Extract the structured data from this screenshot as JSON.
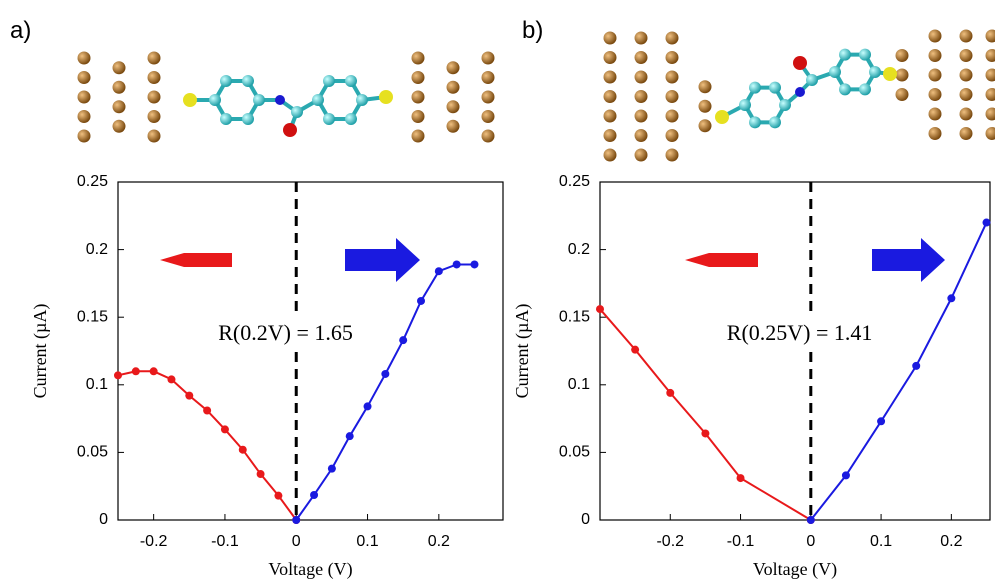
{
  "chart_data": [
    {
      "type": "line",
      "panel_label": "a)",
      "xlabel": "Voltage (V)",
      "ylabel": "Current (µA)",
      "annotation": "R(0.2V) = 1.65",
      "xlim": [
        -0.25,
        0.29
      ],
      "ylim": [
        0,
        0.25
      ],
      "xticks": [
        -0.2,
        -0.1,
        0,
        0.1,
        0.2
      ],
      "yticks": [
        0,
        0.05,
        0.1,
        0.15,
        0.2,
        0.25
      ],
      "vline": 0,
      "series": [
        {
          "color": "#e8191b",
          "x": [
            -0.25,
            -0.225,
            -0.2,
            -0.175,
            -0.15,
            -0.125,
            -0.1,
            -0.075,
            -0.05,
            -0.025,
            0
          ],
          "values": [
            0.107,
            0.11,
            0.11,
            0.104,
            0.092,
            0.081,
            0.067,
            0.052,
            0.034,
            0.018,
            0
          ]
        },
        {
          "color": "#1a1ae0",
          "x": [
            0,
            0.025,
            0.05,
            0.075,
            0.1,
            0.125,
            0.15,
            0.175,
            0.2,
            0.225,
            0.25
          ],
          "values": [
            0,
            0.0185,
            0.038,
            0.062,
            0.084,
            0.108,
            0.133,
            0.162,
            0.184,
            0.189,
            0.189
          ]
        }
      ]
    },
    {
      "type": "line",
      "panel_label": "b)",
      "xlabel": "Voltage (V)",
      "ylabel": "Current (µA)",
      "annotation": "R(0.25V) = 1.41",
      "xlim": [
        -0.3,
        0.255
      ],
      "ylim": [
        0,
        0.25
      ],
      "xticks": [
        -0.2,
        -0.1,
        0,
        0.1,
        0.2
      ],
      "yticks": [
        0,
        0.05,
        0.1,
        0.15,
        0.2,
        0.25
      ],
      "vline": 0,
      "series": [
        {
          "color": "#e8191b",
          "x": [
            -0.3,
            -0.25,
            -0.2,
            -0.15,
            -0.1,
            0
          ],
          "values": [
            0.156,
            0.126,
            0.094,
            0.064,
            0.031,
            0
          ]
        },
        {
          "color": "#1a1ae0",
          "x": [
            0,
            0.05,
            0.1,
            0.15,
            0.2,
            0.25
          ],
          "values": [
            0,
            0.033,
            0.073,
            0.114,
            0.164,
            0.22
          ]
        }
      ]
    }
  ]
}
